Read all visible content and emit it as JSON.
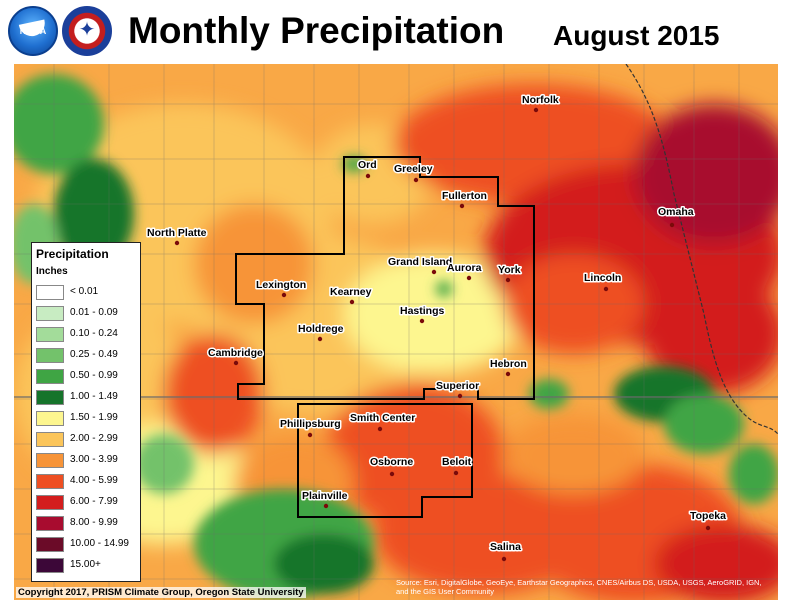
{
  "header": {
    "title": "Monthly Precipitation",
    "date": "August 2015"
  },
  "logos": {
    "noaa": "NOAA",
    "nws": "NATIONAL WEATHER SERVICE"
  },
  "legend": {
    "title": "Precipitation",
    "units": "Inches",
    "items": [
      {
        "label": "< 0.01",
        "color": "#ffffff"
      },
      {
        "label": "0.01 - 0.09",
        "color": "#c8ecc2"
      },
      {
        "label": "0.10 - 0.24",
        "color": "#a3dc9a"
      },
      {
        "label": "0.25 - 0.49",
        "color": "#73c26b"
      },
      {
        "label": "0.50 - 0.99",
        "color": "#3fa544"
      },
      {
        "label": "1.00 - 1.49",
        "color": "#16742b"
      },
      {
        "label": "1.50 - 1.99",
        "color": "#fdf68f"
      },
      {
        "label": "2.00 - 2.99",
        "color": "#fbc55a"
      },
      {
        "label": "3.00 - 3.99",
        "color": "#f79438"
      },
      {
        "label": "4.00 - 5.99",
        "color": "#ee4f22"
      },
      {
        "label": "6.00 - 7.99",
        "color": "#d31d1d"
      },
      {
        "label": "8.00 - 9.99",
        "color": "#a80c2f"
      },
      {
        "label": "10.00 - 14.99",
        "color": "#6b0b28"
      },
      {
        "label": "15.00+",
        "color": "#3c0738"
      }
    ]
  },
  "cities": [
    {
      "name": "Norfolk"
    },
    {
      "name": "Ord"
    },
    {
      "name": "Greeley"
    },
    {
      "name": "Fullerton"
    },
    {
      "name": "North Platte"
    },
    {
      "name": "Omaha"
    },
    {
      "name": "Grand Island"
    },
    {
      "name": "Aurora"
    },
    {
      "name": "York"
    },
    {
      "name": "Lincoln"
    },
    {
      "name": "Lexington"
    },
    {
      "name": "Kearney"
    },
    {
      "name": "Hastings"
    },
    {
      "name": "Holdrege"
    },
    {
      "name": "Cambridge"
    },
    {
      "name": "Hebron"
    },
    {
      "name": "Superior"
    },
    {
      "name": "Phillipsburg"
    },
    {
      "name": "Smith Center"
    },
    {
      "name": "Beloit"
    },
    {
      "name": "Osborne"
    },
    {
      "name": "Plainville"
    },
    {
      "name": "Topeka"
    },
    {
      "name": "Salina"
    }
  ],
  "footer": {
    "copyright": "Copyright 2017, PRISM Climate Group, Oregon State University",
    "source": "Source: Esri, DigitalGlobe, GeoEye, Earthstar Geographics, CNES/Airbus DS, USDA, USGS, AeroGRID, IGN, and the GIS User Community"
  }
}
